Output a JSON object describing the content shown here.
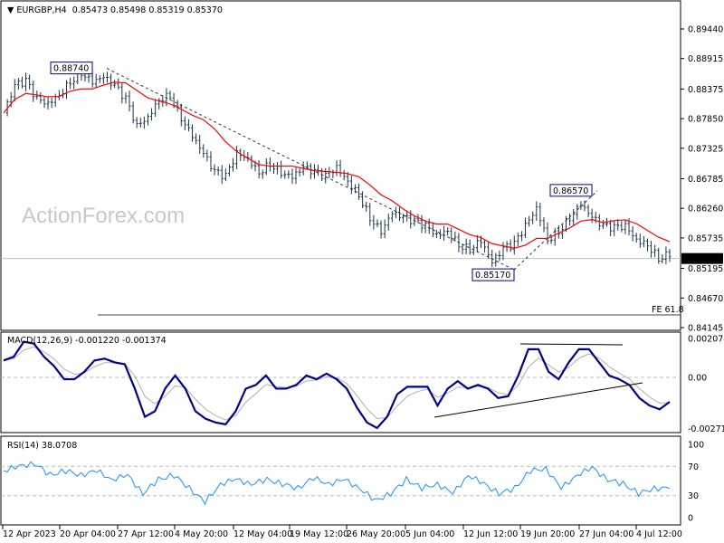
{
  "header": {
    "symbol": "EURGBP,H4",
    "ohlc": "0.85473 0.85498 0.85319 0.85370",
    "menu_icon": "triangle-down-icon"
  },
  "watermark": "ActionForex.com",
  "colors": {
    "bars": "#17344d",
    "ma": "#ff0000",
    "macd_main": "#00008b",
    "macd_signal": "#b0b0b0",
    "rsi": "#1e90ff",
    "label_border": "#00008b"
  },
  "chart_data": [
    {
      "type": "line",
      "title": "EURGBP,H4",
      "price_ticks": [
        "0.89440",
        "0.88915",
        "0.88375",
        "0.87850",
        "0.87325",
        "0.86785",
        "0.86260",
        "0.85735",
        "0.85195",
        "0.84670",
        "0.84145"
      ],
      "ylim": [
        0.84145,
        0.8944
      ],
      "current_price": "0.85370",
      "x_tick_labels": [
        "12 Apr 2023",
        "20 Apr 04:00",
        "27 Apr 12:00",
        "4 May 20:00",
        "12 May 04:00",
        "19 May 12:00",
        "26 May 20:00",
        "5 Jun 04:00",
        "12 Jun 12:00",
        "19 Jun 20:00",
        "27 Jun 04:00",
        "4 Jul 12:00"
      ],
      "close": [
        0.8795,
        0.8843,
        0.8851,
        0.8819,
        0.8811,
        0.8827,
        0.8851,
        0.8867,
        0.8851,
        0.8859,
        0.8843,
        0.8819,
        0.8771,
        0.8787,
        0.8819,
        0.8827,
        0.8787,
        0.8755,
        0.8723,
        0.869,
        0.8682,
        0.8723,
        0.8714,
        0.869,
        0.8706,
        0.869,
        0.8682,
        0.8698,
        0.869,
        0.8682,
        0.8698,
        0.8674,
        0.865,
        0.861,
        0.8586,
        0.8618,
        0.861,
        0.8602,
        0.8594,
        0.8578,
        0.8586,
        0.8562,
        0.8554,
        0.857,
        0.853,
        0.8554,
        0.8562,
        0.8594,
        0.8626,
        0.857,
        0.8586,
        0.861,
        0.8634,
        0.861,
        0.8594,
        0.8591,
        0.8594,
        0.857,
        0.8562,
        0.8538,
        0.8546
      ],
      "annotations": [
        {
          "label": "0.88740",
          "price": 0.8874
        },
        {
          "label": "0.85170",
          "price": 0.8517
        },
        {
          "label": "0.86570",
          "price": 0.8657
        },
        {
          "label": "FE 61.8",
          "price": 0.8437
        }
      ]
    },
    {
      "type": "line",
      "title": "MACD(12,26,9) -0.001220 -0.001374",
      "ticks": [
        "0.002074",
        "0.00",
        "-0.002716"
      ],
      "ylim": [
        -0.002716,
        0.002074
      ],
      "macd": [
        0.0009,
        0.0011,
        0.0019,
        0.0018,
        0.0011,
        0.0006,
        -0.0001,
        -0.0001,
        0.0003,
        0.0009,
        0.001,
        0.0008,
        0.0007,
        -0.0006,
        -0.0021,
        -0.0018,
        -0.0006,
        0.0001,
        -0.0006,
        -0.0018,
        -0.0022,
        -0.0024,
        -0.0025,
        -0.0018,
        -0.0006,
        -0.0004,
        0.0001,
        -0.0006,
        -0.0006,
        -0.0004,
        0.0001,
        -0.0001,
        0.0002,
        -0.0001,
        -0.0006,
        -0.0016,
        -0.0024,
        -0.0027,
        -0.0021,
        -0.0009,
        -0.0005,
        -0.0005,
        -0.0005,
        -0.0015,
        -0.0006,
        -0.0002,
        -0.0006,
        -0.0004,
        -0.0006,
        -0.0011,
        -0.001,
        0.0001,
        0.0015,
        0.0015,
        0.0003,
        -0.0001,
        0.0008,
        0.0015,
        0.0015,
        0.0008,
        0.0001,
        -0.0001,
        -0.0004,
        -0.0011,
        -0.0015,
        -0.0017,
        -0.0013
      ],
      "signal_period": 9
    },
    {
      "type": "line",
      "title": "RSI(14) 38.0708",
      "ticks": [
        "100",
        "70",
        "30",
        "0"
      ],
      "ylim": [
        0,
        100
      ],
      "levels": [
        70,
        30
      ],
      "rsi": [
        64,
        70,
        74,
        58,
        64,
        58,
        64,
        52,
        58,
        33,
        52,
        58,
        40,
        21,
        46,
        52,
        46,
        52,
        46,
        40,
        54,
        46,
        52,
        40,
        23,
        33,
        52,
        40,
        46,
        33,
        58,
        46,
        33,
        40,
        64,
        67,
        40,
        58,
        68,
        52,
        46,
        33,
        40,
        40
      ]
    }
  ]
}
